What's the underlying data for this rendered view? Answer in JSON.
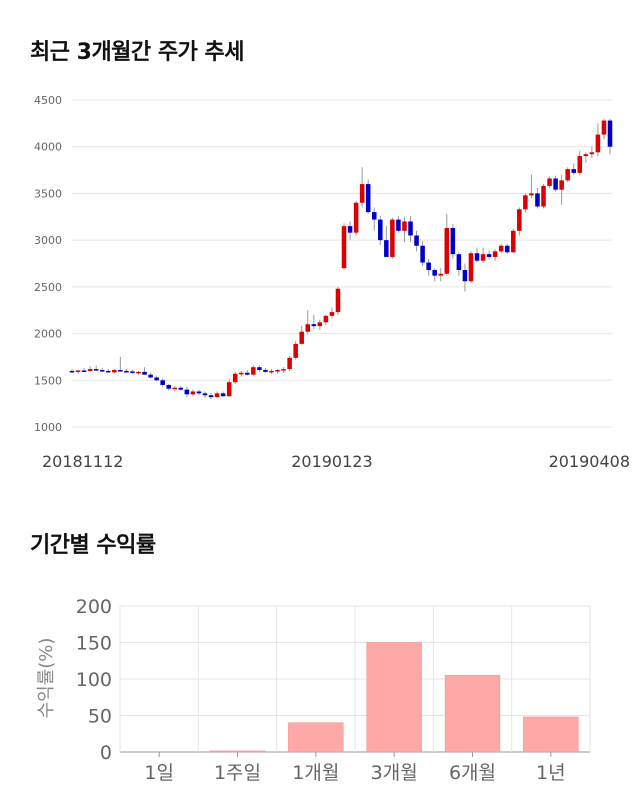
{
  "sections": {
    "price_title": "최근 3개월간 주가 추세",
    "return_title": "기간별 수익률"
  },
  "chart_data": [
    {
      "type": "candlestick",
      "title": "최근 3개월간 주가 추세",
      "y_ticks": [
        1000,
        1500,
        2000,
        2500,
        3000,
        3500,
        4000,
        4500
      ],
      "ylim": [
        1000,
        4500
      ],
      "x_tick_labels": [
        {
          "label": "20181112",
          "index": 0
        },
        {
          "label": "20190123",
          "index": 43
        },
        {
          "label": "20190408",
          "index": 88
        }
      ],
      "grid": true,
      "up_color": "#dd0000",
      "down_color": "#0000cc",
      "candles": [
        [
          1600,
          1620,
          1580,
          1590
        ],
        [
          1590,
          1610,
          1570,
          1605
        ],
        [
          1605,
          1630,
          1590,
          1600
        ],
        [
          1600,
          1650,
          1590,
          1620
        ],
        [
          1620,
          1660,
          1600,
          1610
        ],
        [
          1610,
          1630,
          1590,
          1600
        ],
        [
          1600,
          1620,
          1580,
          1585
        ],
        [
          1585,
          1620,
          1570,
          1610
        ],
        [
          1610,
          1750,
          1590,
          1600
        ],
        [
          1600,
          1620,
          1580,
          1595
        ],
        [
          1595,
          1610,
          1570,
          1580
        ],
        [
          1580,
          1600,
          1560,
          1590
        ],
        [
          1590,
          1640,
          1570,
          1560
        ],
        [
          1560,
          1580,
          1520,
          1530
        ],
        [
          1530,
          1550,
          1490,
          1500
        ],
        [
          1500,
          1520,
          1430,
          1450
        ],
        [
          1450,
          1460,
          1390,
          1410
        ],
        [
          1410,
          1440,
          1380,
          1420
        ],
        [
          1420,
          1440,
          1390,
          1400
        ],
        [
          1400,
          1430,
          1320,
          1350
        ],
        [
          1350,
          1400,
          1330,
          1380
        ],
        [
          1380,
          1400,
          1340,
          1360
        ],
        [
          1360,
          1380,
          1310,
          1340
        ],
        [
          1340,
          1360,
          1300,
          1320
        ],
        [
          1320,
          1380,
          1310,
          1360
        ],
        [
          1360,
          1380,
          1320,
          1330
        ],
        [
          1330,
          1510,
          1320,
          1480
        ],
        [
          1480,
          1590,
          1460,
          1570
        ],
        [
          1570,
          1600,
          1540,
          1580
        ],
        [
          1580,
          1610,
          1550,
          1560
        ],
        [
          1560,
          1660,
          1550,
          1640
        ],
        [
          1640,
          1660,
          1590,
          1610
        ],
        [
          1610,
          1630,
          1580,
          1590
        ],
        [
          1590,
          1620,
          1570,
          1600
        ],
        [
          1600,
          1620,
          1570,
          1610
        ],
        [
          1610,
          1640,
          1580,
          1620
        ],
        [
          1620,
          1760,
          1600,
          1740
        ],
        [
          1740,
          1920,
          1720,
          1890
        ],
        [
          1890,
          2080,
          1880,
          2020
        ],
        [
          2020,
          2250,
          1990,
          2100
        ],
        [
          2100,
          2200,
          2050,
          2080
        ],
        [
          2080,
          2150,
          2040,
          2120
        ],
        [
          2120,
          2200,
          2090,
          2190
        ],
        [
          2190,
          2280,
          2170,
          2230
        ],
        [
          2230,
          2500,
          2200,
          2480
        ],
        [
          2700,
          3180,
          2680,
          3150
        ],
        [
          3150,
          3200,
          3000,
          3080
        ],
        [
          3080,
          3420,
          3050,
          3400
        ],
        [
          3400,
          3780,
          3350,
          3600
        ],
        [
          3600,
          3650,
          3280,
          3300
        ],
        [
          3300,
          3350,
          3100,
          3220
        ],
        [
          3220,
          3260,
          2950,
          3000
        ],
        [
          3000,
          3150,
          2820,
          2820
        ],
        [
          2820,
          3240,
          2800,
          3220
        ],
        [
          3220,
          3260,
          3080,
          3100
        ],
        [
          3100,
          3250,
          2980,
          3200
        ],
        [
          3200,
          3260,
          2980,
          3050
        ],
        [
          3050,
          3100,
          2880,
          2940
        ],
        [
          2940,
          2990,
          2720,
          2760
        ],
        [
          2760,
          2800,
          2620,
          2680
        ],
        [
          2680,
          2700,
          2560,
          2620
        ],
        [
          2620,
          2700,
          2560,
          2640
        ],
        [
          2640,
          3280,
          2620,
          3130
        ],
        [
          3130,
          3170,
          2800,
          2850
        ],
        [
          2850,
          2870,
          2620,
          2680
        ],
        [
          2680,
          2750,
          2450,
          2560
        ],
        [
          2560,
          2880,
          2540,
          2860
        ],
        [
          2860,
          2920,
          2760,
          2780
        ],
        [
          2780,
          2920,
          2760,
          2850
        ],
        [
          2850,
          2890,
          2790,
          2820
        ],
        [
          2820,
          2900,
          2780,
          2880
        ],
        [
          2880,
          2960,
          2860,
          2940
        ],
        [
          2940,
          2960,
          2850,
          2870
        ],
        [
          2870,
          3120,
          2860,
          3100
        ],
        [
          3100,
          3350,
          3050,
          3330
        ],
        [
          3330,
          3500,
          3300,
          3480
        ],
        [
          3480,
          3700,
          3450,
          3500
        ],
        [
          3500,
          3560,
          3340,
          3360
        ],
        [
          3360,
          3600,
          3340,
          3580
        ],
        [
          3580,
          3680,
          3560,
          3660
        ],
        [
          3660,
          3690,
          3520,
          3540
        ],
        [
          3540,
          3700,
          3380,
          3640
        ],
        [
          3640,
          3780,
          3620,
          3760
        ],
        [
          3760,
          3820,
          3700,
          3720
        ],
        [
          3720,
          3960,
          3700,
          3900
        ],
        [
          3900,
          3940,
          3830,
          3920
        ],
        [
          3920,
          4000,
          3880,
          3940
        ],
        [
          3940,
          4250,
          3900,
          4130
        ],
        [
          4130,
          4300,
          4080,
          4280
        ],
        [
          4280,
          4300,
          3920,
          4000
        ]
      ]
    },
    {
      "type": "bar",
      "title": "기간별 수익률",
      "categories": [
        "1일",
        "1주일",
        "1개월",
        "3개월",
        "6개월",
        "1년"
      ],
      "values": [
        0,
        1.5,
        40,
        150,
        105,
        48
      ],
      "ylabel": "수익률(%)",
      "ylim": [
        0,
        200
      ],
      "y_ticks": [
        0,
        50,
        100,
        150,
        200
      ],
      "grid": true,
      "bar_color": "#ffa8a8"
    }
  ]
}
